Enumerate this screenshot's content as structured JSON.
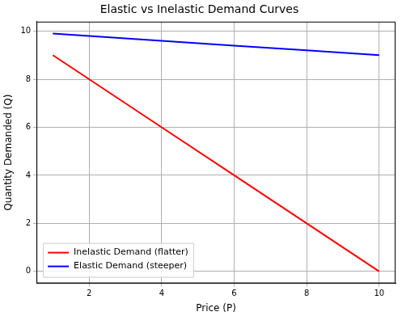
{
  "chart_data": {
    "type": "line",
    "title": "Elastic vs Inelastic Demand Curves",
    "x_label": "Price (P)",
    "y_label": "Quantity Demanded (Q)",
    "x": [
      1,
      2,
      4,
      6,
      8,
      10
    ],
    "series": [
      {
        "name": "Inelastic Demand (flatter)",
        "color": "#ff0000",
        "values": [
          9,
          8,
          6,
          4,
          2,
          0
        ]
      },
      {
        "name": "Elastic Demand (steeper)",
        "color": "#0000ff",
        "values": [
          9.9,
          9.8,
          9.6,
          9.4,
          9.2,
          9.0
        ]
      }
    ],
    "xlim": [
      0.55,
      10.45
    ],
    "ylim": [
      -0.495,
      10.395
    ],
    "xticks": [
      2,
      4,
      6,
      8,
      10
    ],
    "yticks": [
      0,
      2,
      4,
      6,
      8,
      10
    ],
    "grid": true,
    "legend": "lower left"
  }
}
